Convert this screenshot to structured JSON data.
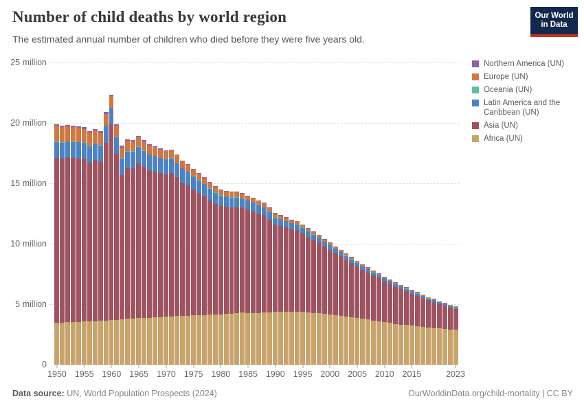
{
  "header": {
    "title": "Number of child deaths by world region",
    "subtitle": "The estimated annual number of children who died before they were five years old.",
    "logo_line1": "Our World",
    "logo_line2": "in Data"
  },
  "footer": {
    "source_label": "Data source:",
    "source_text": "UN, World Population Prospects (2024)",
    "link_text": "OurWorldinData.org/child-mortality | CC BY"
  },
  "legend": {
    "items": [
      {
        "label": "Northern America (UN)",
        "color": "#8A63A8"
      },
      {
        "label": "Europe (UN)",
        "color": "#CE7844"
      },
      {
        "label": "Oceania (UN)",
        "color": "#5FBEA2"
      },
      {
        "label": "Latin America and the Caribbean (UN)",
        "color": "#4E83C1"
      },
      {
        "label": "Asia (UN)",
        "color": "#9E5460"
      },
      {
        "label": "Africa (UN)",
        "color": "#C8A36C"
      }
    ]
  },
  "chart_data": {
    "type": "bar",
    "stacked": true,
    "title": "Number of child deaths by world region",
    "xlabel": "",
    "ylabel": "",
    "values_unit": "million deaths per year",
    "ylim_millions": [
      0,
      25
    ],
    "grid": true,
    "legend_position": "right",
    "ytick_labels_top_to_bottom": [
      "25 million",
      "20 million",
      "15 million",
      "10 million",
      "5 million",
      "0"
    ],
    "xtick_labels": [
      "1950",
      "1955",
      "1960",
      "1965",
      "1970",
      "1975",
      "1980",
      "1985",
      "1990",
      "1995",
      "2000",
      "2005",
      "2010",
      "2015",
      "2023"
    ],
    "x_start_year": 1950,
    "x": [
      1950,
      1951,
      1952,
      1953,
      1954,
      1955,
      1956,
      1957,
      1958,
      1959,
      1960,
      1961,
      1962,
      1963,
      1964,
      1965,
      1966,
      1967,
      1968,
      1969,
      1970,
      1971,
      1972,
      1973,
      1974,
      1975,
      1976,
      1977,
      1978,
      1979,
      1980,
      1981,
      1982,
      1983,
      1984,
      1985,
      1986,
      1987,
      1988,
      1989,
      1990,
      1991,
      1992,
      1993,
      1994,
      1995,
      1996,
      1997,
      1998,
      1999,
      2000,
      2001,
      2002,
      2003,
      2004,
      2005,
      2006,
      2007,
      2008,
      2009,
      2010,
      2011,
      2012,
      2013,
      2014,
      2015,
      2016,
      2017,
      2018,
      2019,
      2020,
      2021,
      2022,
      2023
    ],
    "series_stack_order": "bottom_to_top",
    "series": [
      {
        "name": "Africa (UN)",
        "color": "#C8A36C",
        "values": [
          3.46,
          3.48,
          3.5,
          3.52,
          3.54,
          3.56,
          3.58,
          3.6,
          3.63,
          3.66,
          3.69,
          3.72,
          3.75,
          3.78,
          3.81,
          3.84,
          3.86,
          3.88,
          3.9,
          3.93,
          3.96,
          3.99,
          4.01,
          4.03,
          4.05,
          4.07,
          4.09,
          4.11,
          4.13,
          4.15,
          4.17,
          4.19,
          4.21,
          4.28,
          4.32,
          4.28,
          4.26,
          4.28,
          4.31,
          4.33,
          4.35,
          4.36,
          4.37,
          4.38,
          4.4,
          4.36,
          4.32,
          4.28,
          4.24,
          4.2,
          4.15,
          4.1,
          4.05,
          4.0,
          3.94,
          3.87,
          3.8,
          3.73,
          3.66,
          3.58,
          3.51,
          3.44,
          3.38,
          3.32,
          3.27,
          3.22,
          3.17,
          3.12,
          3.08,
          3.04,
          3.0,
          2.96,
          2.92,
          2.88
        ]
      },
      {
        "name": "Asia (UN)",
        "color": "#9E5460",
        "values": [
          13.67,
          13.57,
          13.64,
          13.58,
          13.52,
          13.46,
          13.14,
          13.32,
          13.12,
          14.72,
          16.17,
          13.72,
          11.93,
          12.49,
          12.46,
          12.83,
          12.51,
          12.19,
          12.08,
          11.9,
          11.78,
          11.85,
          11.5,
          11.04,
          10.78,
          10.43,
          10.12,
          9.81,
          9.46,
          9.15,
          8.94,
          8.86,
          8.79,
          8.76,
          8.68,
          8.56,
          8.43,
          8.25,
          8.06,
          7.68,
          7.25,
          7.14,
          6.97,
          6.79,
          6.71,
          6.49,
          6.27,
          6.04,
          5.86,
          5.58,
          5.36,
          5.14,
          4.91,
          4.68,
          4.46,
          4.26,
          4.04,
          3.88,
          3.71,
          3.56,
          3.39,
          3.24,
          3.06,
          2.93,
          2.8,
          2.66,
          2.52,
          2.39,
          2.24,
          2.14,
          2.01,
          1.9,
          1.8,
          1.73
        ]
      },
      {
        "name": "Latin America and the Caribbean (UN)",
        "color": "#4E83C1",
        "values": [
          1.3,
          1.31,
          1.32,
          1.33,
          1.34,
          1.35,
          1.36,
          1.37,
          1.38,
          1.38,
          1.38,
          1.38,
          1.38,
          1.37,
          1.36,
          1.35,
          1.33,
          1.31,
          1.29,
          1.27,
          1.25,
          1.22,
          1.19,
          1.16,
          1.12,
          1.08,
          1.04,
          1.0,
          0.96,
          0.92,
          0.88,
          0.85,
          0.82,
          0.79,
          0.76,
          0.73,
          0.7,
          0.67,
          0.64,
          0.61,
          0.58,
          0.55,
          0.53,
          0.51,
          0.49,
          0.47,
          0.45,
          0.43,
          0.41,
          0.39,
          0.37,
          0.35,
          0.34,
          0.32,
          0.31,
          0.29,
          0.28,
          0.27,
          0.26,
          0.25,
          0.24,
          0.23,
          0.22,
          0.21,
          0.2,
          0.19,
          0.18,
          0.17,
          0.16,
          0.15,
          0.14,
          0.14,
          0.13,
          0.12
        ]
      },
      {
        "name": "Oceania (UN)",
        "color": "#5FBEA2",
        "values": [
          0.03,
          0.03,
          0.03,
          0.03,
          0.03,
          0.03,
          0.03,
          0.03,
          0.03,
          0.03,
          0.03,
          0.03,
          0.03,
          0.03,
          0.03,
          0.03,
          0.03,
          0.03,
          0.03,
          0.03,
          0.03,
          0.03,
          0.03,
          0.03,
          0.03,
          0.03,
          0.03,
          0.03,
          0.03,
          0.03,
          0.03,
          0.03,
          0.03,
          0.03,
          0.03,
          0.03,
          0.03,
          0.03,
          0.03,
          0.03,
          0.03,
          0.025,
          0.025,
          0.025,
          0.025,
          0.025,
          0.025,
          0.025,
          0.025,
          0.025,
          0.025,
          0.025,
          0.025,
          0.025,
          0.025,
          0.025,
          0.025,
          0.025,
          0.025,
          0.025,
          0.025,
          0.02,
          0.02,
          0.02,
          0.02,
          0.02,
          0.02,
          0.02,
          0.02,
          0.02,
          0.02,
          0.02,
          0.02,
          0.02
        ]
      },
      {
        "name": "Europe (UN)",
        "color": "#CE7844",
        "values": [
          1.3,
          1.25,
          1.22,
          1.18,
          1.15,
          1.12,
          1.08,
          1.05,
          1.01,
          0.98,
          0.95,
          0.92,
          0.89,
          0.86,
          0.82,
          0.79,
          0.76,
          0.73,
          0.7,
          0.67,
          0.64,
          0.62,
          0.59,
          0.56,
          0.54,
          0.52,
          0.5,
          0.48,
          0.46,
          0.44,
          0.42,
          0.41,
          0.39,
          0.38,
          0.36,
          0.35,
          0.33,
          0.32,
          0.31,
          0.3,
          0.29,
          0.28,
          0.26,
          0.25,
          0.23,
          0.22,
          0.2,
          0.19,
          0.18,
          0.17,
          0.16,
          0.15,
          0.14,
          0.14,
          0.13,
          0.12,
          0.12,
          0.11,
          0.11,
          0.1,
          0.1,
          0.09,
          0.09,
          0.09,
          0.08,
          0.08,
          0.08,
          0.07,
          0.07,
          0.07,
          0.06,
          0.06,
          0.06,
          0.06
        ]
      },
      {
        "name": "Northern America (UN)",
        "color": "#8A63A8",
        "values": [
          0.14,
          0.14,
          0.14,
          0.14,
          0.14,
          0.14,
          0.13,
          0.13,
          0.13,
          0.13,
          0.13,
          0.13,
          0.12,
          0.12,
          0.12,
          0.11,
          0.11,
          0.11,
          0.1,
          0.1,
          0.09,
          0.09,
          0.08,
          0.08,
          0.08,
          0.07,
          0.07,
          0.07,
          0.06,
          0.06,
          0.06,
          0.06,
          0.06,
          0.06,
          0.055,
          0.055,
          0.054,
          0.053,
          0.052,
          0.051,
          0.05,
          0.048,
          0.046,
          0.044,
          0.042,
          0.04,
          0.039,
          0.038,
          0.037,
          0.036,
          0.035,
          0.034,
          0.034,
          0.033,
          0.033,
          0.033,
          0.032,
          0.032,
          0.032,
          0.031,
          0.031,
          0.03,
          0.03,
          0.029,
          0.029,
          0.028,
          0.028,
          0.027,
          0.027,
          0.026,
          0.025,
          0.025,
          0.024,
          0.024
        ]
      }
    ]
  }
}
